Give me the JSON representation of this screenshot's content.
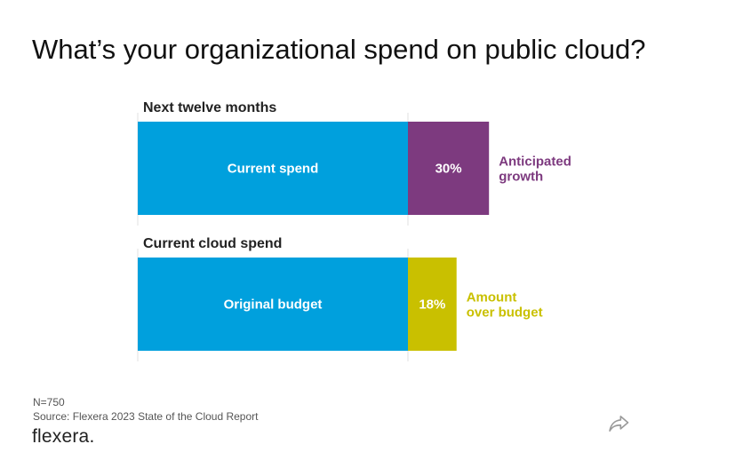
{
  "title": "What’s your organizational spend on public cloud?",
  "chart_data": {
    "type": "bar",
    "stacked": true,
    "orientation": "horizontal",
    "groups": [
      {
        "label": "Next twelve months",
        "segments": [
          {
            "label": "Current spend",
            "value": 100,
            "color": "#00a0dd"
          },
          {
            "label": "30%",
            "value": 30,
            "color": "#7d3a7f",
            "annotation": [
              "Anticipated",
              "growth"
            ]
          }
        ]
      },
      {
        "label": "Current cloud spend",
        "segments": [
          {
            "label": "Original budget",
            "value": 100,
            "color": "#00a0dd"
          },
          {
            "label": "18%",
            "value": 18,
            "color": "#c9c000",
            "annotation": [
              "Amount",
              "over budget"
            ]
          }
        ]
      }
    ]
  },
  "footer": {
    "n": "N=750",
    "source": "Source: Flexera 2023 State of the Cloud Report",
    "logo": "flexera"
  },
  "icons": {
    "share": "share-icon"
  }
}
